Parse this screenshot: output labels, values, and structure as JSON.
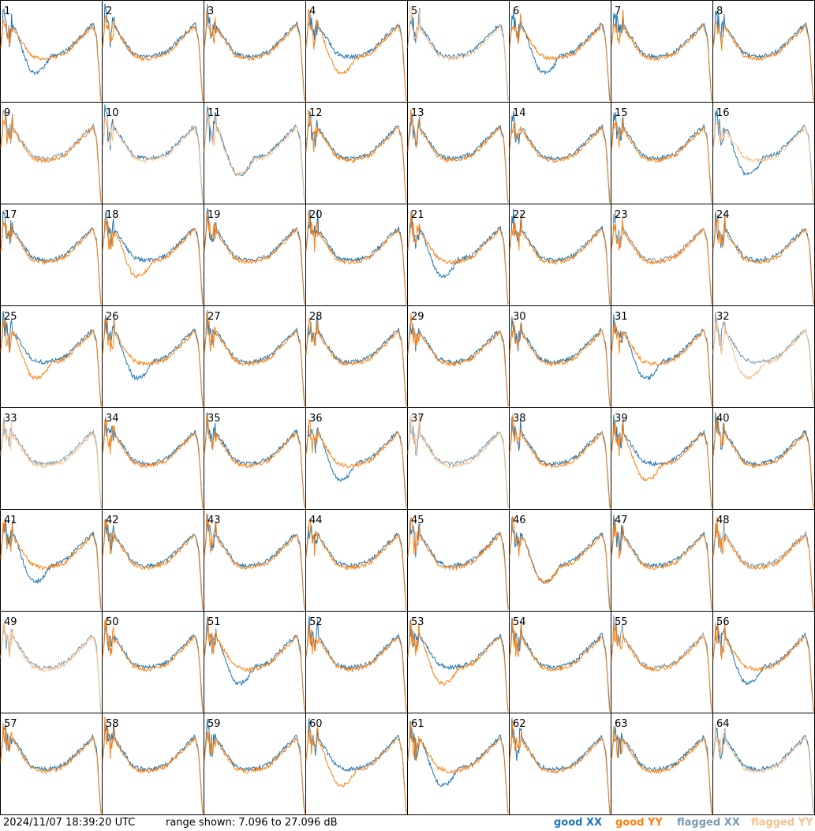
{
  "timestamp": "2024/11/07 18:39:20 UTC",
  "range_text": "range shown: 7.096 to 27.096 dB",
  "legend": {
    "good_xx": "good XX",
    "good_yy": "good YY",
    "flagged_xx": "flagged XX",
    "flagged_yy": "flagged YY"
  },
  "colors": {
    "good_xx": "#1f77b4",
    "good_yy": "#ff7f0e",
    "flagged_xx": "#7a9bb5",
    "flagged_yy": "#f7c08e",
    "frame": "#000000"
  },
  "chart_data": {
    "type": "line",
    "grid_rows": 8,
    "grid_cols": 8,
    "ylim": [
      7.096,
      27.096
    ],
    "ylabel": "",
    "xlabel": "",
    "panels": [
      {
        "label": "1"
      },
      {
        "label": "2"
      },
      {
        "label": "3"
      },
      {
        "label": "4"
      },
      {
        "label": "5",
        "yy": "flagged"
      },
      {
        "label": "6"
      },
      {
        "label": "7"
      },
      {
        "label": "8"
      },
      {
        "label": "9",
        "xx": "flagged"
      },
      {
        "label": "10",
        "yy": "flagged"
      },
      {
        "label": "11",
        "yy": "flagged"
      },
      {
        "label": "12"
      },
      {
        "label": "13"
      },
      {
        "label": "14"
      },
      {
        "label": "15"
      },
      {
        "label": "16",
        "yy": "flagged"
      },
      {
        "label": "17"
      },
      {
        "label": "18"
      },
      {
        "label": "19"
      },
      {
        "label": "20"
      },
      {
        "label": "21"
      },
      {
        "label": "22"
      },
      {
        "label": "23",
        "xx": "flagged"
      },
      {
        "label": "24"
      },
      {
        "label": "25"
      },
      {
        "label": "26"
      },
      {
        "label": "27"
      },
      {
        "label": "28"
      },
      {
        "label": "29"
      },
      {
        "label": "30"
      },
      {
        "label": "31"
      },
      {
        "label": "32",
        "xx": "flagged",
        "yy": "flagged"
      },
      {
        "label": "33",
        "xx": "flagged",
        "yy": "flagged"
      },
      {
        "label": "34"
      },
      {
        "label": "35"
      },
      {
        "label": "36"
      },
      {
        "label": "37",
        "xx": "flagged",
        "yy": "flagged"
      },
      {
        "label": "38"
      },
      {
        "label": "39"
      },
      {
        "label": "40"
      },
      {
        "label": "41"
      },
      {
        "label": "42"
      },
      {
        "label": "43"
      },
      {
        "label": "44"
      },
      {
        "label": "45"
      },
      {
        "label": "46"
      },
      {
        "label": "47"
      },
      {
        "label": "48",
        "xx": "flagged"
      },
      {
        "label": "49",
        "xx": "flagged",
        "yy": "flagged"
      },
      {
        "label": "50"
      },
      {
        "label": "51"
      },
      {
        "label": "52"
      },
      {
        "label": "53"
      },
      {
        "label": "54"
      },
      {
        "label": "55",
        "xx": "flagged"
      },
      {
        "label": "56"
      },
      {
        "label": "57"
      },
      {
        "label": "58"
      },
      {
        "label": "59"
      },
      {
        "label": "60"
      },
      {
        "label": "61"
      },
      {
        "label": "62"
      },
      {
        "label": "63"
      },
      {
        "label": "64",
        "yy": "flagged"
      }
    ]
  }
}
